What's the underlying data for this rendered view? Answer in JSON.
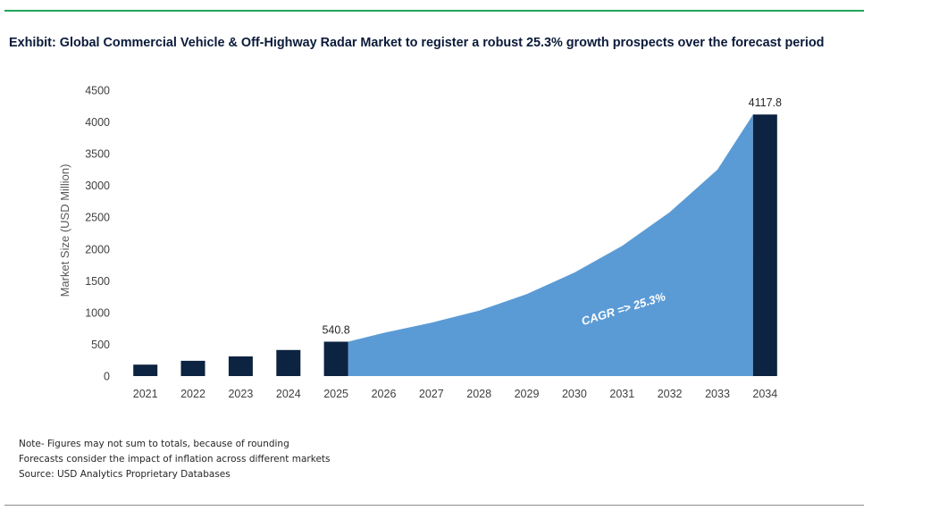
{
  "title": "Exhibit: Global Commercial Vehicle & Off-Highway Radar Market to register a robust 25.3% growth prospects over the forecast period",
  "notes": [
    "Note- Figures may not sum to totals, because of rounding",
    "Forecasts consider the impact of inflation across different markets",
    "Source: USD Analytics Proprietary Databases"
  ],
  "colors": {
    "bar": "#0c2341",
    "area": "#5b9bd5",
    "rule_top": "#22a55a",
    "rule_bottom": "#8c8c8c"
  },
  "chart_data": {
    "type": "bar",
    "ylabel": "Market Size (USD Million)",
    "ylim": [
      0,
      4500
    ],
    "yticks": [
      0,
      500,
      1000,
      1500,
      2000,
      2500,
      3000,
      3500,
      4000,
      4500
    ],
    "grid": false,
    "categories": [
      "2021",
      "2022",
      "2023",
      "2024",
      "2025",
      "2026",
      "2027",
      "2028",
      "2029",
      "2030",
      "2031",
      "2032",
      "2033",
      "2034"
    ],
    "bars": [
      {
        "category": "2021",
        "value": 180
      },
      {
        "category": "2022",
        "value": 240
      },
      {
        "category": "2023",
        "value": 310
      },
      {
        "category": "2024",
        "value": 410
      },
      {
        "category": "2025",
        "value": 540.8,
        "label": "540.8"
      },
      {
        "category": "2034",
        "value": 4117.8,
        "label": "4117.8"
      }
    ],
    "area": {
      "categories": [
        "2025",
        "2026",
        "2027",
        "2028",
        "2029",
        "2030",
        "2031",
        "2032",
        "2033",
        "2034"
      ],
      "values": [
        540.8,
        680,
        840,
        1030,
        1290,
        1630,
        2050,
        2580,
        3250,
        4117.8
      ]
    },
    "annotation": "CAGR => 25.3%"
  }
}
